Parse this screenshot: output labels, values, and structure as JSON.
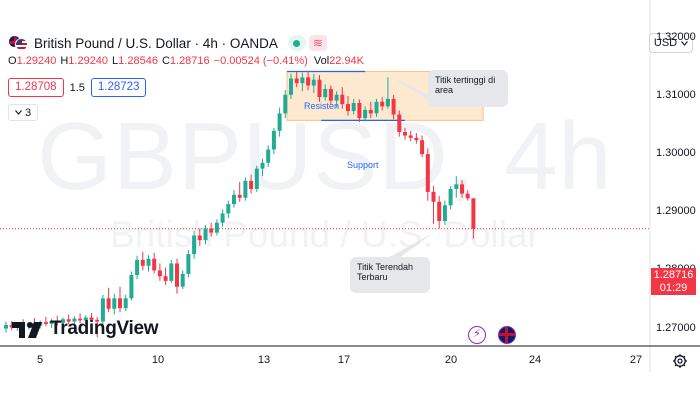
{
  "header": {
    "title": "British Pound / U.S. Dollar · 4h · OANDA",
    "wave_badge": "≋"
  },
  "ohlc": {
    "o_label": "O",
    "o_value": "1.29240",
    "h_label": "H",
    "h_value": "1.29240",
    "l_label": "L",
    "l_value": "1.28546",
    "c_label": "C",
    "c_value": "1.28716",
    "change": "−0.00524 (−0.41%)",
    "vol_label": "Vol",
    "vol_value": "22.94K"
  },
  "quotes": {
    "sell": "1.28708",
    "spread": "1.5",
    "buy": "1.28723",
    "indicators_count": "3"
  },
  "currency_selector": {
    "value": "USD"
  },
  "watermark": {
    "symbol": "GBPUSD, 4h",
    "name": "British Pound / U.S. Dollar"
  },
  "price_axis": {
    "ticks": [
      "1.32000",
      "1.31000",
      "1.30000",
      "1.29000",
      "1.28000",
      "1.27000"
    ],
    "last_price": "1.28716",
    "countdown": "01:29"
  },
  "time_axis": {
    "ticks": [
      "5",
      "10",
      "13",
      "17",
      "20",
      "24",
      "27"
    ]
  },
  "annotations": {
    "resistance": "Resisten",
    "support": "Support",
    "callout_high": "Titik tertinggi di area",
    "callout_low": "Titik Terendah Terbaru"
  },
  "logo": {
    "text": "TradingView"
  },
  "colors": {
    "up": "#22ab94",
    "down": "#f23645",
    "accent": "#2962ff",
    "zone_fill": "#fde9cf"
  },
  "chart_data": {
    "type": "candlestick",
    "title": "British Pound / U.S. Dollar · 4h · OANDA",
    "xlabel": "",
    "ylabel": "",
    "ylim": [
      1.267,
      1.3265
    ],
    "x_ticks": [
      "5",
      "10",
      "13",
      "17",
      "20",
      "24",
      "27"
    ],
    "y_ticks": [
      1.32,
      1.31,
      1.3,
      1.29,
      1.28,
      1.27
    ],
    "last_price": 1.28716,
    "candles": [
      {
        "o": 1.27,
        "h": 1.2712,
        "l": 1.2693,
        "c": 1.2706
      },
      {
        "o": 1.2706,
        "h": 1.2713,
        "l": 1.2697,
        "c": 1.2702
      },
      {
        "o": 1.2702,
        "h": 1.271,
        "l": 1.2696,
        "c": 1.2707
      },
      {
        "o": 1.2707,
        "h": 1.2716,
        "l": 1.2699,
        "c": 1.2703
      },
      {
        "o": 1.2703,
        "h": 1.2711,
        "l": 1.2698,
        "c": 1.2709
      },
      {
        "o": 1.2709,
        "h": 1.2718,
        "l": 1.2702,
        "c": 1.2705
      },
      {
        "o": 1.2705,
        "h": 1.2714,
        "l": 1.27,
        "c": 1.2711
      },
      {
        "o": 1.2711,
        "h": 1.272,
        "l": 1.2704,
        "c": 1.2708
      },
      {
        "o": 1.2708,
        "h": 1.2717,
        "l": 1.2701,
        "c": 1.2713
      },
      {
        "o": 1.2713,
        "h": 1.2722,
        "l": 1.2705,
        "c": 1.271
      },
      {
        "o": 1.271,
        "h": 1.2719,
        "l": 1.2703,
        "c": 1.2716
      },
      {
        "o": 1.2716,
        "h": 1.2724,
        "l": 1.2707,
        "c": 1.2712
      },
      {
        "o": 1.2712,
        "h": 1.2721,
        "l": 1.2706,
        "c": 1.2717
      },
      {
        "o": 1.2717,
        "h": 1.2726,
        "l": 1.2709,
        "c": 1.2714
      },
      {
        "o": 1.2714,
        "h": 1.2723,
        "l": 1.2708,
        "c": 1.2719
      },
      {
        "o": 1.2719,
        "h": 1.2727,
        "l": 1.2711,
        "c": 1.2715
      },
      {
        "o": 1.2715,
        "h": 1.272,
        "l": 1.2685,
        "c": 1.2712
      },
      {
        "o": 1.2712,
        "h": 1.2758,
        "l": 1.2708,
        "c": 1.2752
      },
      {
        "o": 1.2752,
        "h": 1.277,
        "l": 1.2728,
        "c": 1.2734
      },
      {
        "o": 1.2734,
        "h": 1.276,
        "l": 1.2724,
        "c": 1.2752
      },
      {
        "o": 1.2752,
        "h": 1.2772,
        "l": 1.2728,
        "c": 1.2735
      },
      {
        "o": 1.2735,
        "h": 1.2758,
        "l": 1.273,
        "c": 1.2752
      },
      {
        "o": 1.2752,
        "h": 1.2798,
        "l": 1.2748,
        "c": 1.2792
      },
      {
        "o": 1.2792,
        "h": 1.2825,
        "l": 1.2785,
        "c": 1.2818
      },
      {
        "o": 1.2818,
        "h": 1.2832,
        "l": 1.28,
        "c": 1.2808
      },
      {
        "o": 1.2808,
        "h": 1.2826,
        "l": 1.2798,
        "c": 1.282
      },
      {
        "o": 1.282,
        "h": 1.283,
        "l": 1.2795,
        "c": 1.28
      },
      {
        "o": 1.28,
        "h": 1.2812,
        "l": 1.2782,
        "c": 1.279
      },
      {
        "o": 1.279,
        "h": 1.2805,
        "l": 1.2775,
        "c": 1.2782
      },
      {
        "o": 1.2782,
        "h": 1.2818,
        "l": 1.2778,
        "c": 1.2812
      },
      {
        "o": 1.2812,
        "h": 1.282,
        "l": 1.276,
        "c": 1.2772
      },
      {
        "o": 1.2772,
        "h": 1.28,
        "l": 1.2768,
        "c": 1.2794
      },
      {
        "o": 1.2794,
        "h": 1.2835,
        "l": 1.2788,
        "c": 1.2828
      },
      {
        "o": 1.2828,
        "h": 1.2868,
        "l": 1.282,
        "c": 1.286
      },
      {
        "o": 1.286,
        "h": 1.2872,
        "l": 1.2842,
        "c": 1.2852
      },
      {
        "o": 1.2852,
        "h": 1.2878,
        "l": 1.2845,
        "c": 1.2872
      },
      {
        "o": 1.2872,
        "h": 1.2882,
        "l": 1.2858,
        "c": 1.2865
      },
      {
        "o": 1.2865,
        "h": 1.2888,
        "l": 1.286,
        "c": 1.2882
      },
      {
        "o": 1.2882,
        "h": 1.2905,
        "l": 1.2875,
        "c": 1.2898
      },
      {
        "o": 1.2898,
        "h": 1.292,
        "l": 1.289,
        "c": 1.2914
      },
      {
        "o": 1.2914,
        "h": 1.2938,
        "l": 1.2908,
        "c": 1.293
      },
      {
        "o": 1.293,
        "h": 1.2952,
        "l": 1.2918,
        "c": 1.2925
      },
      {
        "o": 1.2925,
        "h": 1.296,
        "l": 1.292,
        "c": 1.2954
      },
      {
        "o": 1.2954,
        "h": 1.2965,
        "l": 1.2932,
        "c": 1.294
      },
      {
        "o": 1.294,
        "h": 1.298,
        "l": 1.2935,
        "c": 1.2975
      },
      {
        "o": 1.2975,
        "h": 1.2992,
        "l": 1.2962,
        "c": 1.2985
      },
      {
        "o": 1.2985,
        "h": 1.3015,
        "l": 1.2978,
        "c": 1.3008
      },
      {
        "o": 1.3008,
        "h": 1.3045,
        "l": 1.3,
        "c": 1.304
      },
      {
        "o": 1.304,
        "h": 1.308,
        "l": 1.303,
        "c": 1.307
      },
      {
        "o": 1.307,
        "h": 1.311,
        "l": 1.3062,
        "c": 1.3102
      },
      {
        "o": 1.3102,
        "h": 1.3138,
        "l": 1.3095,
        "c": 1.313
      },
      {
        "o": 1.313,
        "h": 1.3142,
        "l": 1.3115,
        "c": 1.3122
      },
      {
        "o": 1.3122,
        "h": 1.314,
        "l": 1.3108,
        "c": 1.3132
      },
      {
        "o": 1.3132,
        "h": 1.3142,
        "l": 1.311,
        "c": 1.3118
      },
      {
        "o": 1.3118,
        "h": 1.3138,
        "l": 1.3105,
        "c": 1.3128
      },
      {
        "o": 1.3128,
        "h": 1.3136,
        "l": 1.309,
        "c": 1.3098
      },
      {
        "o": 1.3098,
        "h": 1.312,
        "l": 1.3092,
        "c": 1.3112
      },
      {
        "o": 1.3112,
        "h": 1.3118,
        "l": 1.3085,
        "c": 1.3092
      },
      {
        "o": 1.3092,
        "h": 1.3108,
        "l": 1.308,
        "c": 1.3102
      },
      {
        "o": 1.3102,
        "h": 1.3115,
        "l": 1.3078,
        "c": 1.3086
      },
      {
        "o": 1.3086,
        "h": 1.31,
        "l": 1.3066,
        "c": 1.3074
      },
      {
        "o": 1.3074,
        "h": 1.3095,
        "l": 1.3068,
        "c": 1.3088
      },
      {
        "o": 1.3088,
        "h": 1.3094,
        "l": 1.3055,
        "c": 1.3062
      },
      {
        "o": 1.3062,
        "h": 1.3082,
        "l": 1.3056,
        "c": 1.3076
      },
      {
        "o": 1.3076,
        "h": 1.309,
        "l": 1.3062,
        "c": 1.307
      },
      {
        "o": 1.307,
        "h": 1.3095,
        "l": 1.3064,
        "c": 1.309
      },
      {
        "o": 1.309,
        "h": 1.3098,
        "l": 1.3075,
        "c": 1.3082
      },
      {
        "o": 1.3082,
        "h": 1.3132,
        "l": 1.3078,
        "c": 1.3095
      },
      {
        "o": 1.3095,
        "h": 1.3102,
        "l": 1.306,
        "c": 1.3068
      },
      {
        "o": 1.3068,
        "h": 1.3075,
        "l": 1.303,
        "c": 1.3038
      },
      {
        "o": 1.3038,
        "h": 1.3045,
        "l": 1.3025,
        "c": 1.3032
      },
      {
        "o": 1.3032,
        "h": 1.304,
        "l": 1.3022,
        "c": 1.3028
      },
      {
        "o": 1.3028,
        "h": 1.3036,
        "l": 1.3018,
        "c": 1.3024
      },
      {
        "o": 1.3024,
        "h": 1.3032,
        "l": 1.2995,
        "c": 1.3
      },
      {
        "o": 1.3,
        "h": 1.301,
        "l": 1.292,
        "c": 1.2935
      },
      {
        "o": 1.2935,
        "h": 1.2945,
        "l": 1.288,
        "c": 1.2918
      },
      {
        "o": 1.2918,
        "h": 1.2928,
        "l": 1.2872,
        "c": 1.2885
      },
      {
        "o": 1.2885,
        "h": 1.292,
        "l": 1.2878,
        "c": 1.2912
      },
      {
        "o": 1.2912,
        "h": 1.2945,
        "l": 1.2905,
        "c": 1.294
      },
      {
        "o": 1.294,
        "h": 1.2962,
        "l": 1.2925,
        "c": 1.2948
      },
      {
        "o": 1.2948,
        "h": 1.2955,
        "l": 1.2925,
        "c": 1.2932
      },
      {
        "o": 1.2932,
        "h": 1.2938,
        "l": 1.292,
        "c": 1.2924
      },
      {
        "o": 1.2924,
        "h": 1.2924,
        "l": 1.28546,
        "c": 1.28716
      }
    ],
    "annotations": [
      {
        "type": "zone",
        "x_start_index": 50,
        "x_end_index": 83,
        "y_low": 1.3058,
        "y_high": 1.3142
      },
      {
        "type": "hline",
        "label": "Resisten",
        "x_start_index": 50,
        "x_end_index": 63,
        "y": 1.3142
      },
      {
        "type": "hline",
        "label": "Support",
        "x_start_index": 56,
        "x_end_index": 70,
        "y": 1.3058
      },
      {
        "type": "callout",
        "text": "Titik tertinggi di area",
        "target_index": 67,
        "target_price": 1.3132
      },
      {
        "type": "callout",
        "text": "Titik Terendah Terbaru",
        "target_index": 75,
        "target_price": 1.2872
      }
    ]
  }
}
